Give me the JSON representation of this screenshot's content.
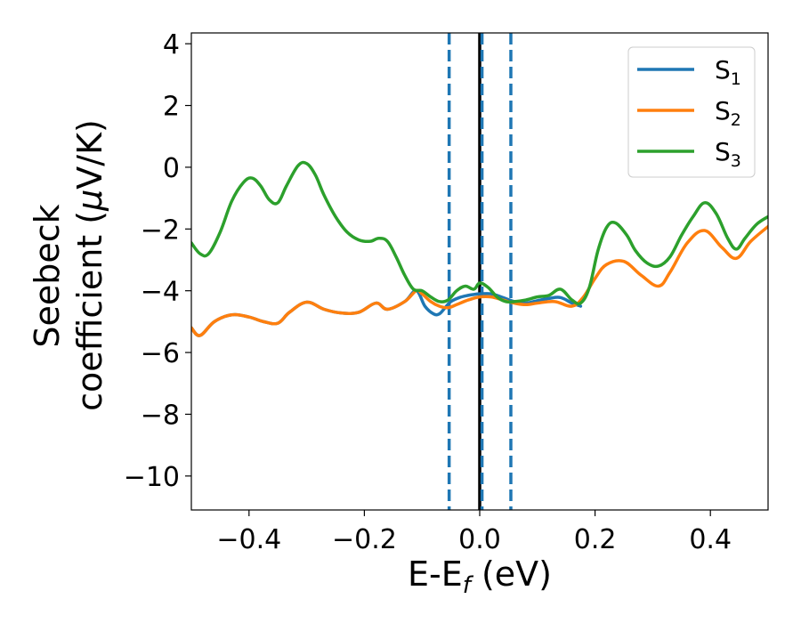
{
  "chart_data": {
    "type": "line",
    "title": "",
    "xlabel": "E-E",
    "xlabel_sub": "f",
    "xlabel_unit": " (eV)",
    "ylabel_line1": "Seebeck",
    "ylabel_line2": "coefficient  (",
    "ylabel_mu": "μ",
    "ylabel_unit": "V/K)",
    "xlim": [
      -0.5,
      0.5
    ],
    "ylim": [
      -11.1,
      4.35
    ],
    "xticks": [
      -0.4,
      -0.2,
      0.0,
      0.2,
      0.4
    ],
    "xtick_labels": [
      "−0.4",
      "−0.2",
      "0.0",
      "0.2",
      "0.4"
    ],
    "yticks": [
      -10,
      -8,
      -6,
      -4,
      -2,
      0,
      2,
      4
    ],
    "ytick_labels": [
      "−10",
      "−8",
      "−6",
      "−4",
      "−2",
      "0",
      "2",
      "4"
    ],
    "grid": false,
    "legend_position": "top-right",
    "vlines": [
      {
        "x": -0.053,
        "style": "dashed",
        "color": "#1f77b4"
      },
      {
        "x": 0.0,
        "style": "solid",
        "color": "#000000"
      },
      {
        "x": 0.004,
        "style": "dashed",
        "color": "#1f77b4"
      },
      {
        "x": 0.054,
        "style": "dashed",
        "color": "#1f77b4"
      }
    ],
    "series": [
      {
        "name": "S",
        "subscript": "1",
        "color": "#1f77b4",
        "x": [
          -0.5,
          -0.485,
          -0.46,
          -0.43,
          -0.4,
          -0.375,
          -0.35,
          -0.33,
          -0.3,
          -0.27,
          -0.24,
          -0.21,
          -0.18,
          -0.16,
          -0.13,
          -0.11,
          -0.095,
          -0.08,
          -0.07,
          -0.06,
          -0.05,
          -0.035,
          -0.02,
          -0.01,
          0.0,
          0.02,
          0.04,
          0.06,
          0.08,
          0.1,
          0.12,
          0.14,
          0.16,
          0.175
        ],
        "y": [
          -5.2,
          -5.45,
          -5.0,
          -4.78,
          -4.85,
          -5.0,
          -5.05,
          -4.7,
          -4.37,
          -4.6,
          -4.72,
          -4.7,
          -4.4,
          -4.6,
          -4.35,
          -4.0,
          -4.5,
          -4.75,
          -4.75,
          -4.55,
          -4.35,
          -4.22,
          -4.15,
          -4.12,
          -4.1,
          -4.1,
          -4.22,
          -4.35,
          -4.4,
          -4.32,
          -4.25,
          -4.22,
          -4.4,
          -4.5
        ]
      },
      {
        "name": "S",
        "subscript": "2",
        "color": "#ff7f0e",
        "x": [
          -0.5,
          -0.485,
          -0.46,
          -0.43,
          -0.4,
          -0.375,
          -0.35,
          -0.33,
          -0.3,
          -0.27,
          -0.24,
          -0.21,
          -0.18,
          -0.16,
          -0.13,
          -0.11,
          -0.1,
          -0.085,
          -0.07,
          -0.055,
          -0.04,
          -0.02,
          0.0,
          0.02,
          0.04,
          0.06,
          0.08,
          0.1,
          0.13,
          0.16,
          0.18,
          0.2,
          0.22,
          0.25,
          0.28,
          0.31,
          0.33,
          0.36,
          0.39,
          0.42,
          0.445,
          0.47,
          0.5
        ],
        "y": [
          -5.2,
          -5.45,
          -5.0,
          -4.78,
          -4.85,
          -5.0,
          -5.05,
          -4.7,
          -4.37,
          -4.6,
          -4.72,
          -4.7,
          -4.4,
          -4.6,
          -4.35,
          -4.0,
          -4.1,
          -4.35,
          -4.5,
          -4.55,
          -4.45,
          -4.3,
          -4.2,
          -4.2,
          -4.3,
          -4.4,
          -4.45,
          -4.4,
          -4.35,
          -4.5,
          -4.2,
          -3.6,
          -3.15,
          -3.05,
          -3.5,
          -3.85,
          -3.4,
          -2.45,
          -2.05,
          -2.6,
          -2.95,
          -2.4,
          -1.92
        ]
      },
      {
        "name": "S",
        "subscript": "3",
        "color": "#2ca02c",
        "x": [
          -0.5,
          -0.485,
          -0.47,
          -0.45,
          -0.43,
          -0.41,
          -0.395,
          -0.38,
          -0.365,
          -0.35,
          -0.335,
          -0.315,
          -0.3,
          -0.285,
          -0.27,
          -0.25,
          -0.23,
          -0.21,
          -0.19,
          -0.175,
          -0.16,
          -0.145,
          -0.13,
          -0.115,
          -0.1,
          -0.085,
          -0.07,
          -0.055,
          -0.04,
          -0.025,
          -0.01,
          0.0,
          0.015,
          0.03,
          0.045,
          0.06,
          0.08,
          0.1,
          0.12,
          0.14,
          0.16,
          0.175,
          0.19,
          0.205,
          0.22,
          0.235,
          0.255,
          0.27,
          0.29,
          0.31,
          0.33,
          0.35,
          0.37,
          0.39,
          0.41,
          0.43,
          0.445,
          0.46,
          0.48,
          0.5
        ],
        "y": [
          -2.45,
          -2.8,
          -2.8,
          -2.1,
          -1.1,
          -0.5,
          -0.35,
          -0.6,
          -1.05,
          -1.15,
          -0.6,
          0.05,
          0.12,
          -0.25,
          -0.9,
          -1.6,
          -2.1,
          -2.35,
          -2.4,
          -2.3,
          -2.4,
          -2.9,
          -3.5,
          -3.95,
          -4.0,
          -4.2,
          -4.35,
          -4.3,
          -4.0,
          -3.85,
          -3.95,
          -3.75,
          -3.9,
          -4.2,
          -4.35,
          -4.35,
          -4.3,
          -4.2,
          -4.15,
          -3.95,
          -4.3,
          -4.4,
          -3.9,
          -2.7,
          -1.95,
          -1.8,
          -2.2,
          -2.7,
          -3.1,
          -3.2,
          -2.9,
          -2.2,
          -1.6,
          -1.15,
          -1.5,
          -2.3,
          -2.65,
          -2.3,
          -1.85,
          -1.6
        ]
      }
    ]
  }
}
